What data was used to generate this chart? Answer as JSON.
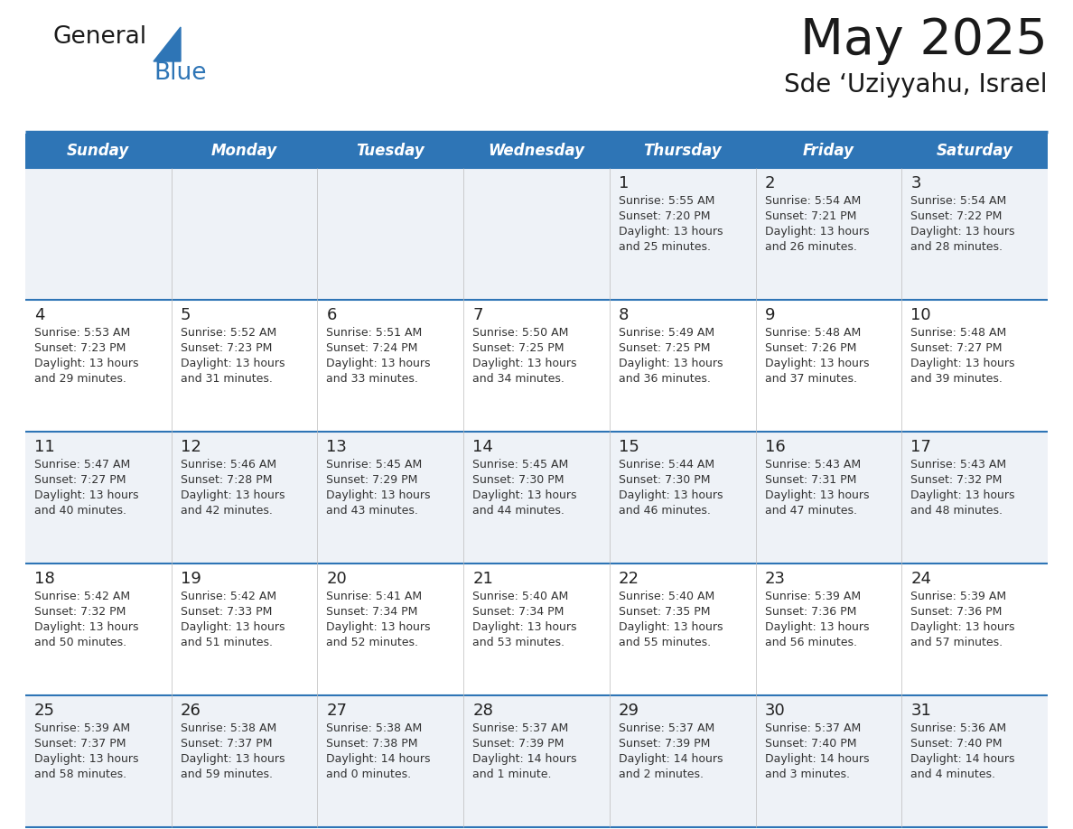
{
  "title": "May 2025",
  "subtitle": "Sde ‘Uziyyahu, Israel",
  "days_of_week": [
    "Sunday",
    "Monday",
    "Tuesday",
    "Wednesday",
    "Thursday",
    "Friday",
    "Saturday"
  ],
  "header_bg": "#2E75B6",
  "header_text": "#FFFFFF",
  "row_bg_odd": "#EEF2F7",
  "row_bg_even": "#FFFFFF",
  "day_number_color": "#222222",
  "cell_text_color": "#333333",
  "line_color": "#2E75B6",
  "bg_color": "#FFFFFF",
  "title_color": "#1a1a1a",
  "subtitle_color": "#1a1a1a",
  "logo_general_color": "#1a1a1a",
  "logo_blue_color": "#2E75B6",
  "calendar_data": [
    [
      null,
      null,
      null,
      null,
      {
        "day": 1,
        "sunrise": "5:55 AM",
        "sunset": "7:20 PM",
        "daylight_h": "13 hours",
        "daylight_m": "and 25 minutes."
      },
      {
        "day": 2,
        "sunrise": "5:54 AM",
        "sunset": "7:21 PM",
        "daylight_h": "13 hours",
        "daylight_m": "and 26 minutes."
      },
      {
        "day": 3,
        "sunrise": "5:54 AM",
        "sunset": "7:22 PM",
        "daylight_h": "13 hours",
        "daylight_m": "and 28 minutes."
      }
    ],
    [
      {
        "day": 4,
        "sunrise": "5:53 AM",
        "sunset": "7:23 PM",
        "daylight_h": "13 hours",
        "daylight_m": "and 29 minutes."
      },
      {
        "day": 5,
        "sunrise": "5:52 AM",
        "sunset": "7:23 PM",
        "daylight_h": "13 hours",
        "daylight_m": "and 31 minutes."
      },
      {
        "day": 6,
        "sunrise": "5:51 AM",
        "sunset": "7:24 PM",
        "daylight_h": "13 hours",
        "daylight_m": "and 33 minutes."
      },
      {
        "day": 7,
        "sunrise": "5:50 AM",
        "sunset": "7:25 PM",
        "daylight_h": "13 hours",
        "daylight_m": "and 34 minutes."
      },
      {
        "day": 8,
        "sunrise": "5:49 AM",
        "sunset": "7:25 PM",
        "daylight_h": "13 hours",
        "daylight_m": "and 36 minutes."
      },
      {
        "day": 9,
        "sunrise": "5:48 AM",
        "sunset": "7:26 PM",
        "daylight_h": "13 hours",
        "daylight_m": "and 37 minutes."
      },
      {
        "day": 10,
        "sunrise": "5:48 AM",
        "sunset": "7:27 PM",
        "daylight_h": "13 hours",
        "daylight_m": "and 39 minutes."
      }
    ],
    [
      {
        "day": 11,
        "sunrise": "5:47 AM",
        "sunset": "7:27 PM",
        "daylight_h": "13 hours",
        "daylight_m": "and 40 minutes."
      },
      {
        "day": 12,
        "sunrise": "5:46 AM",
        "sunset": "7:28 PM",
        "daylight_h": "13 hours",
        "daylight_m": "and 42 minutes."
      },
      {
        "day": 13,
        "sunrise": "5:45 AM",
        "sunset": "7:29 PM",
        "daylight_h": "13 hours",
        "daylight_m": "and 43 minutes."
      },
      {
        "day": 14,
        "sunrise": "5:45 AM",
        "sunset": "7:30 PM",
        "daylight_h": "13 hours",
        "daylight_m": "and 44 minutes."
      },
      {
        "day": 15,
        "sunrise": "5:44 AM",
        "sunset": "7:30 PM",
        "daylight_h": "13 hours",
        "daylight_m": "and 46 minutes."
      },
      {
        "day": 16,
        "sunrise": "5:43 AM",
        "sunset": "7:31 PM",
        "daylight_h": "13 hours",
        "daylight_m": "and 47 minutes."
      },
      {
        "day": 17,
        "sunrise": "5:43 AM",
        "sunset": "7:32 PM",
        "daylight_h": "13 hours",
        "daylight_m": "and 48 minutes."
      }
    ],
    [
      {
        "day": 18,
        "sunrise": "5:42 AM",
        "sunset": "7:32 PM",
        "daylight_h": "13 hours",
        "daylight_m": "and 50 minutes."
      },
      {
        "day": 19,
        "sunrise": "5:42 AM",
        "sunset": "7:33 PM",
        "daylight_h": "13 hours",
        "daylight_m": "and 51 minutes."
      },
      {
        "day": 20,
        "sunrise": "5:41 AM",
        "sunset": "7:34 PM",
        "daylight_h": "13 hours",
        "daylight_m": "and 52 minutes."
      },
      {
        "day": 21,
        "sunrise": "5:40 AM",
        "sunset": "7:34 PM",
        "daylight_h": "13 hours",
        "daylight_m": "and 53 minutes."
      },
      {
        "day": 22,
        "sunrise": "5:40 AM",
        "sunset": "7:35 PM",
        "daylight_h": "13 hours",
        "daylight_m": "and 55 minutes."
      },
      {
        "day": 23,
        "sunrise": "5:39 AM",
        "sunset": "7:36 PM",
        "daylight_h": "13 hours",
        "daylight_m": "and 56 minutes."
      },
      {
        "day": 24,
        "sunrise": "5:39 AM",
        "sunset": "7:36 PM",
        "daylight_h": "13 hours",
        "daylight_m": "and 57 minutes."
      }
    ],
    [
      {
        "day": 25,
        "sunrise": "5:39 AM",
        "sunset": "7:37 PM",
        "daylight_h": "13 hours",
        "daylight_m": "and 58 minutes."
      },
      {
        "day": 26,
        "sunrise": "5:38 AM",
        "sunset": "7:37 PM",
        "daylight_h": "13 hours",
        "daylight_m": "and 59 minutes."
      },
      {
        "day": 27,
        "sunrise": "5:38 AM",
        "sunset": "7:38 PM",
        "daylight_h": "14 hours",
        "daylight_m": "and 0 minutes."
      },
      {
        "day": 28,
        "sunrise": "5:37 AM",
        "sunset": "7:39 PM",
        "daylight_h": "14 hours",
        "daylight_m": "and 1 minute."
      },
      {
        "day": 29,
        "sunrise": "5:37 AM",
        "sunset": "7:39 PM",
        "daylight_h": "14 hours",
        "daylight_m": "and 2 minutes."
      },
      {
        "day": 30,
        "sunrise": "5:37 AM",
        "sunset": "7:40 PM",
        "daylight_h": "14 hours",
        "daylight_m": "and 3 minutes."
      },
      {
        "day": 31,
        "sunrise": "5:36 AM",
        "sunset": "7:40 PM",
        "daylight_h": "14 hours",
        "daylight_m": "and 4 minutes."
      }
    ]
  ]
}
